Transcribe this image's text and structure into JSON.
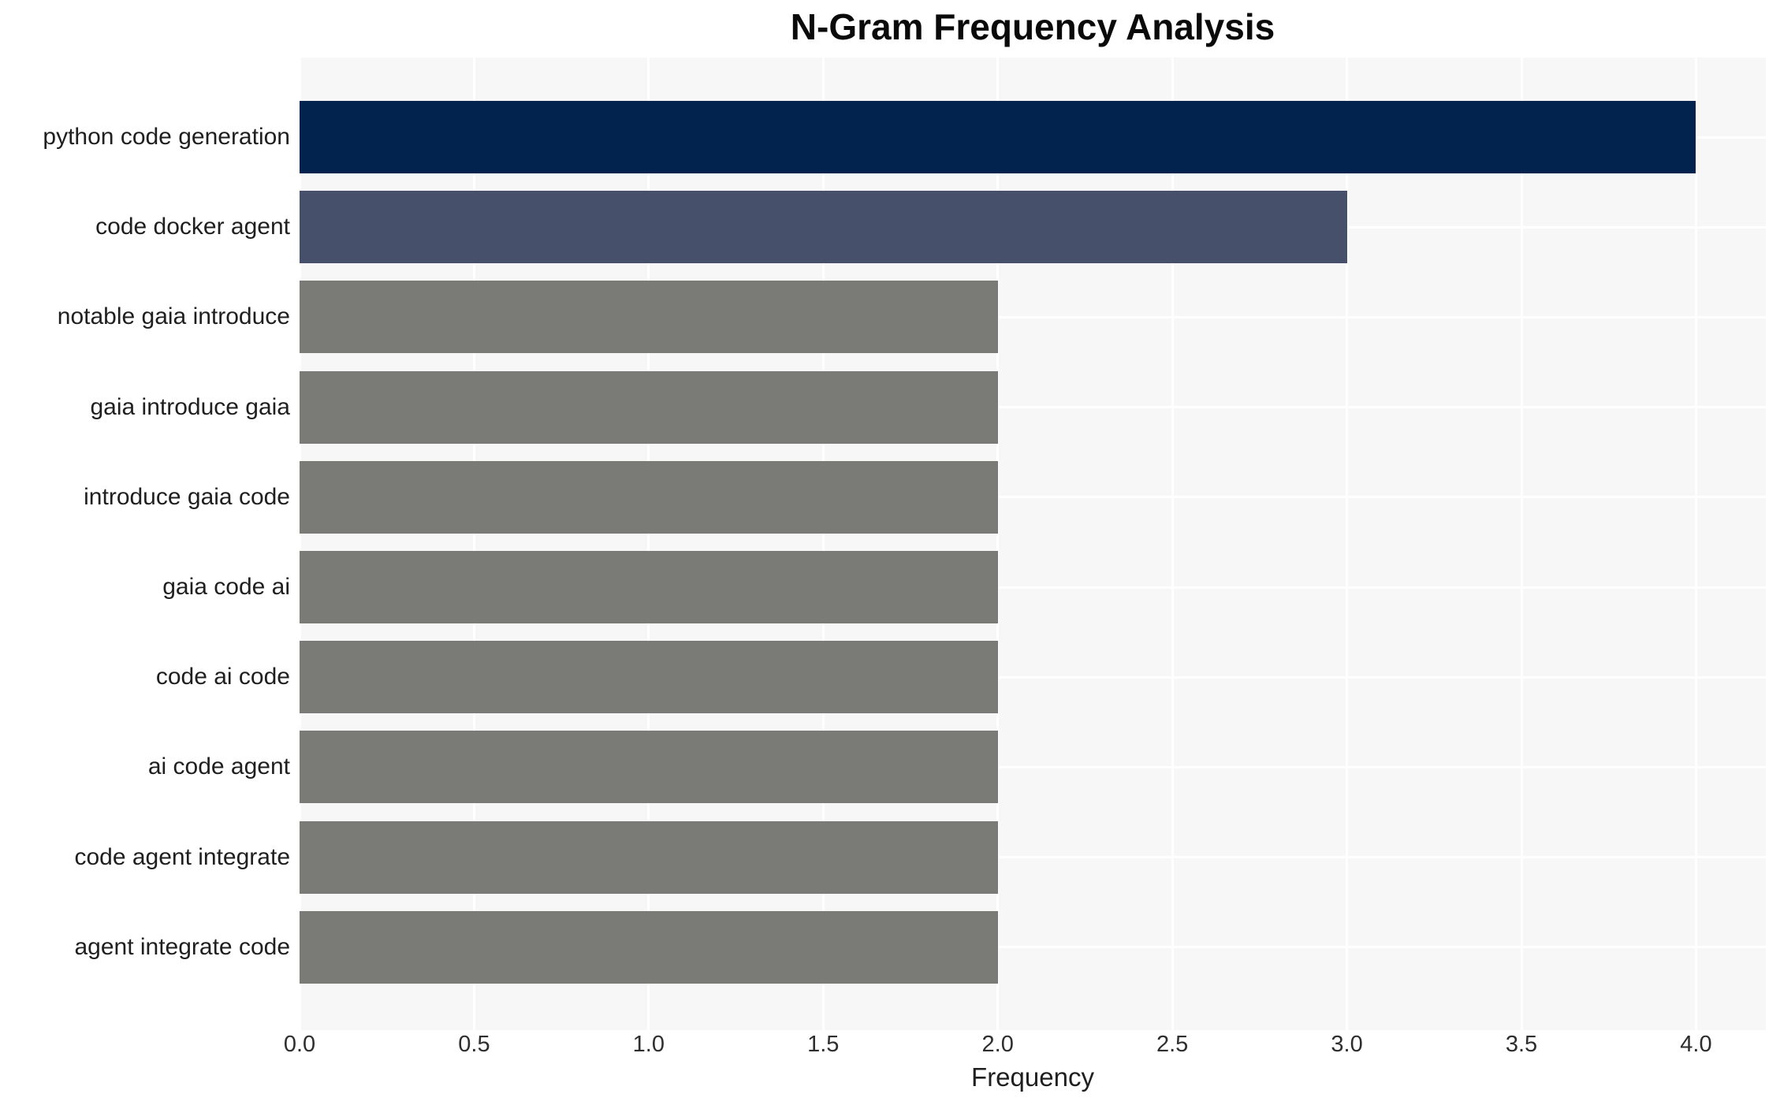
{
  "title": "N-Gram Frequency Analysis",
  "chart_data": {
    "type": "bar",
    "orientation": "horizontal",
    "title": "N-Gram Frequency Analysis",
    "xlabel": "Frequency",
    "ylabel": "",
    "categories": [
      "python code generation",
      "code docker agent",
      "notable gaia introduce",
      "gaia introduce gaia",
      "introduce gaia code",
      "gaia code ai",
      "code ai code",
      "ai code agent",
      "code agent integrate",
      "agent integrate code"
    ],
    "values": [
      4,
      3,
      2,
      2,
      2,
      2,
      2,
      2,
      2,
      2
    ],
    "xlim": [
      0,
      4.2
    ],
    "xticks": [
      0.0,
      0.5,
      1.0,
      1.5,
      2.0,
      2.5,
      3.0,
      3.5,
      4.0
    ],
    "xtick_labels": [
      "0.0",
      "0.5",
      "1.0",
      "1.5",
      "2.0",
      "2.5",
      "3.0",
      "3.5",
      "4.0"
    ],
    "grid": true,
    "legend": false,
    "bar_colors": [
      "#02234e",
      "#46506a",
      "#7a7a77",
      "#7a7a77",
      "#7a7a77",
      "#7a7a77",
      "#7a7a77",
      "#7a7a77",
      "#7a7a77",
      "#7a7a77"
    ],
    "colors": {
      "page_bg": "#ffffff",
      "plot_bg": "#f7f7f8",
      "grid": "#ffffff",
      "title_text": "#0a0a0a",
      "label_text": "#1f1f1f",
      "tick_text": "#2e2e2e"
    }
  }
}
